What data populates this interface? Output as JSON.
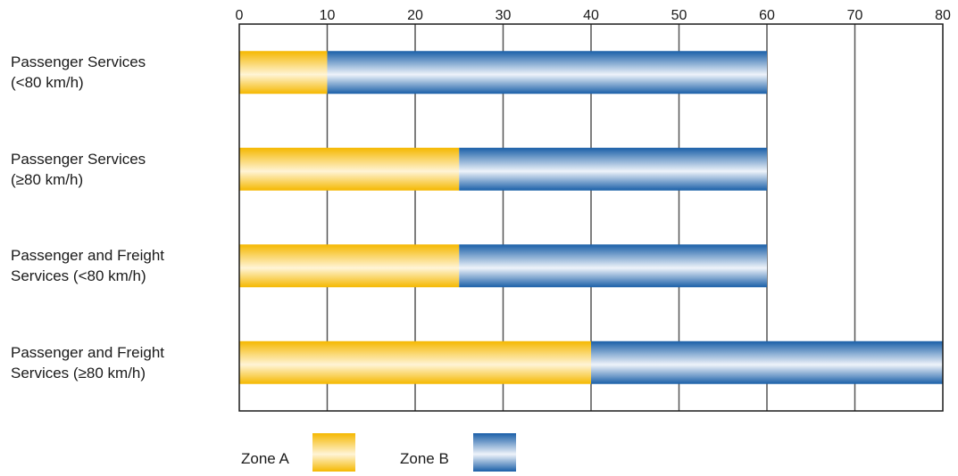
{
  "chart_data": {
    "type": "bar",
    "orientation": "horizontal",
    "stacked": true,
    "categories": [
      "Passenger Services\n(<80 km/h)",
      "Passenger Services\n(≥80 km/h)",
      "Passenger and Freight\nServices (<80 km/h)",
      "Passenger and Freight\nServices (≥80 km/h)"
    ],
    "series": [
      {
        "name": "Zone A",
        "values": [
          10,
          25,
          25,
          40
        ],
        "color": "#f5b800"
      },
      {
        "name": "Zone B",
        "values": [
          50,
          35,
          35,
          40
        ],
        "color": "#1a5fa8"
      }
    ],
    "xlim": [
      0,
      80
    ],
    "xticks": [
      0,
      10,
      20,
      30,
      40,
      50,
      60,
      70,
      80
    ],
    "tick_position": "top",
    "grid": true,
    "legend_position": "bottom-left"
  }
}
